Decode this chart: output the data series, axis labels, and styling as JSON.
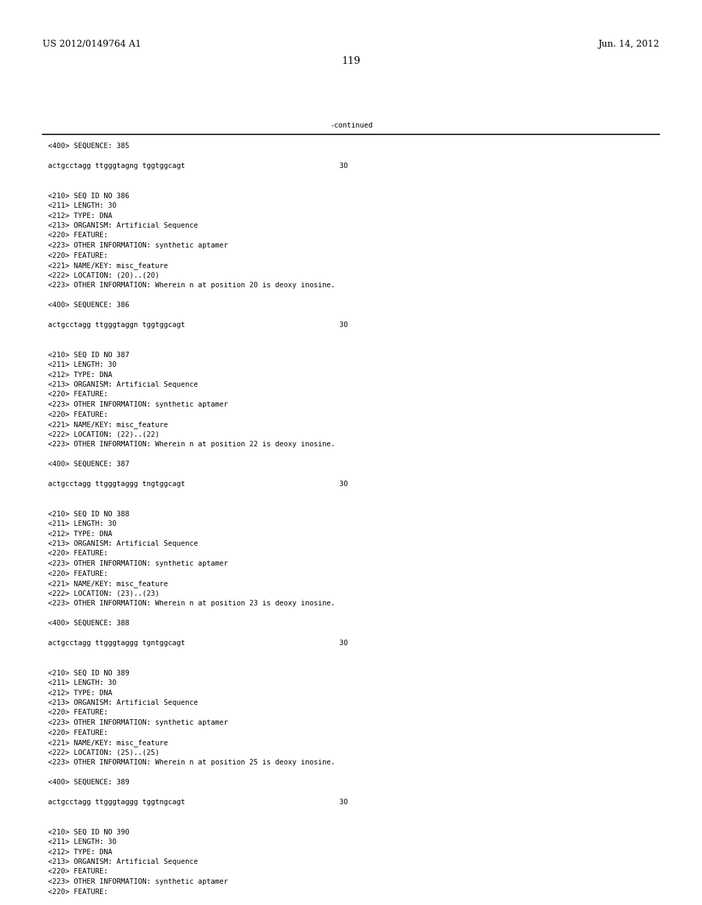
{
  "header_left": "US 2012/0149764 A1",
  "header_right": "Jun. 14, 2012",
  "page_number": "119",
  "continued_text": "-continued",
  "background_color": "#ffffff",
  "text_color": "#000000",
  "font_size_header": 9.5,
  "font_size_body": 7.5,
  "font_size_page": 10.5,
  "lines": [
    "<400> SEQUENCE: 385",
    "",
    "actgcctagg ttgggtagng tggtggcagt                                    30",
    "",
    "",
    "<210> SEQ ID NO 386",
    "<211> LENGTH: 30",
    "<212> TYPE: DNA",
    "<213> ORGANISM: Artificial Sequence",
    "<220> FEATURE:",
    "<223> OTHER INFORMATION: synthetic aptamer",
    "<220> FEATURE:",
    "<221> NAME/KEY: misc_feature",
    "<222> LOCATION: (20)..(20)",
    "<223> OTHER INFORMATION: Wherein n at position 20 is deoxy inosine.",
    "",
    "<400> SEQUENCE: 386",
    "",
    "actgcctagg ttgggtaggn tggtggcagt                                    30",
    "",
    "",
    "<210> SEQ ID NO 387",
    "<211> LENGTH: 30",
    "<212> TYPE: DNA",
    "<213> ORGANISM: Artificial Sequence",
    "<220> FEATURE:",
    "<223> OTHER INFORMATION: synthetic aptamer",
    "<220> FEATURE:",
    "<221> NAME/KEY: misc_feature",
    "<222> LOCATION: (22)..(22)",
    "<223> OTHER INFORMATION: Wherein n at position 22 is deoxy inosine.",
    "",
    "<400> SEQUENCE: 387",
    "",
    "actgcctagg ttgggtaggg tngtggcagt                                    30",
    "",
    "",
    "<210> SEQ ID NO 388",
    "<211> LENGTH: 30",
    "<212> TYPE: DNA",
    "<213> ORGANISM: Artificial Sequence",
    "<220> FEATURE:",
    "<223> OTHER INFORMATION: synthetic aptamer",
    "<220> FEATURE:",
    "<221> NAME/KEY: misc_feature",
    "<222> LOCATION: (23)..(23)",
    "<223> OTHER INFORMATION: Wherein n at position 23 is deoxy inosine.",
    "",
    "<400> SEQUENCE: 388",
    "",
    "actgcctagg ttgggtaggg tgntggcagt                                    30",
    "",
    "",
    "<210> SEQ ID NO 389",
    "<211> LENGTH: 30",
    "<212> TYPE: DNA",
    "<213> ORGANISM: Artificial Sequence",
    "<220> FEATURE:",
    "<223> OTHER INFORMATION: synthetic aptamer",
    "<220> FEATURE:",
    "<221> NAME/KEY: misc_feature",
    "<222> LOCATION: (25)..(25)",
    "<223> OTHER INFORMATION: Wherein n at position 25 is deoxy inosine.",
    "",
    "<400> SEQUENCE: 389",
    "",
    "actgcctagg ttgggtaggg tggtngcagt                                    30",
    "",
    "",
    "<210> SEQ ID NO 390",
    "<211> LENGTH: 30",
    "<212> TYPE: DNA",
    "<213> ORGANISM: Artificial Sequence",
    "<220> FEATURE:",
    "<223> OTHER INFORMATION: synthetic aptamer",
    "<220> FEATURE:"
  ]
}
